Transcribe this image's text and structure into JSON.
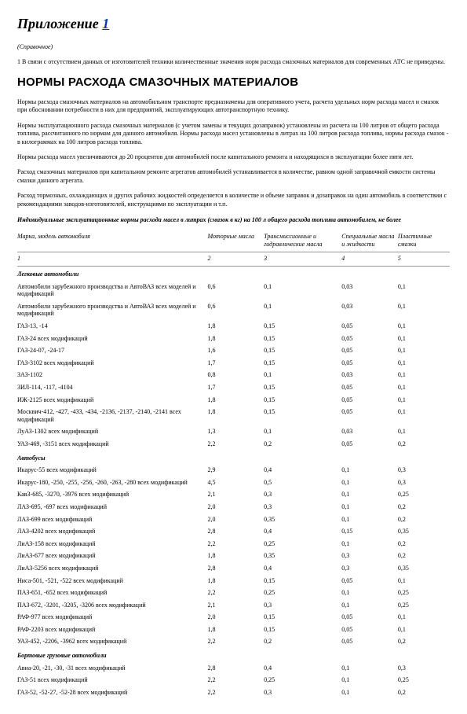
{
  "title_prefix": "Приложение ",
  "title_link": "1",
  "ref_note": "(Справочное)",
  "intro": "1 В связи с отсутствием данных от изготовителей техники количественные значения норм расхода смазочных материалов для современных АТС не приведены.",
  "heading": "НОРМЫ РАСХОДА СМАЗОЧНЫХ МАТЕРИАЛОВ",
  "paras": [
    "Нормы расхода смазочных материалов на автомобильном транспорте предназначены для оперативного учета, расчета удельных норм расхода масел и смазок при обосновании потребности в них для предприятий, эксплуатирующих автотранспортную технику.",
    "Нормы эксплуатационного расхода смазочных материалов (с учетом замены и текущих дозаправок) установлены из расчета на 100 литров от общего расхода топлива, рассчитанного по нормам для данного автомобиля. Нормы расхода масел установлены в литрах на 100 литров расхода топлива, нормы расхода смазок - в килограммах на 100 литров расхода топлива.",
    "Нормы расхода масел увеличиваются до 20 процентов для автомобилей после капитального ремонта и находящихся в эксплуатации более пяти лет.",
    "Расход смазочных материалов при капитальном ремонте агрегатов автомобилей устанавливается в количестве, равном одной заправочной емкости системы смазки данного агрегата.",
    "Расход тормозных, охлаждающих и других рабочих жидкостей определяется в количестве и объеме заправок и дозаправок на один автомобиль в соответствии с рекомендациями заводов-изготовителей, инструкциями по эксплуатации и т.п."
  ],
  "table_caption": "Индивидуальные эксплуатационные нормы расхода масел в литрах (смазок в кг) на 100 л общего расхода топлива автомобилем, не более",
  "columns": [
    "Марка, модель автомобиля",
    "Моторные масла",
    "Трансмиссионные и гидравлические масла",
    "Специальные масла и жидкости",
    "Пластичные смазки"
  ],
  "col_nums": [
    "1",
    "2",
    "3",
    "4",
    "5"
  ],
  "sections": [
    {
      "title": "Легковые автомобили",
      "rows": [
        [
          "Автомобили зарубежного производства и АвтоВАЗ всех моделей и модификаций",
          "0,6",
          "0,1",
          "0,03",
          "0,1"
        ],
        [
          "Автомобили зарубежного производства и АвтоВАЗ всех моделей и модификаций",
          "0,6",
          "0,1",
          "0,03",
          "0,1"
        ],
        [
          "ГАЗ-13, -14",
          "1,8",
          "0,15",
          "0,05",
          "0,1"
        ],
        [
          "ГАЗ-24 всех модификаций",
          "1,8",
          "0,15",
          "0,05",
          "0,1"
        ],
        [
          "ГАЗ-24-07, -24-17",
          "1,6",
          "0,15",
          "0,05",
          "0,1"
        ],
        [
          "ГАЗ-3102 всех модификаций",
          "1,7",
          "0,15",
          "0,05",
          "0,1"
        ],
        [
          "ЗАЗ-1102",
          "0,8",
          "0,1",
          "0,03",
          "0,1"
        ],
        [
          "ЗИЛ-114, -117, -4104",
          "1,7",
          "0,15",
          "0,05",
          "0,1"
        ],
        [
          "ИЖ-2125 всех модификаций",
          "1,8",
          "0,15",
          "0,05",
          "0,1"
        ],
        [
          "Москвич-412, -427, -433, -434, -2136, -2137, -2140, -2141 всех модификаций",
          "1,8",
          "0,15",
          "0,05",
          "0,1"
        ],
        [
          "ЛуАЗ-1302 всех модификаций",
          "1,3",
          "0,1",
          "0,03",
          "0,1"
        ],
        [
          "УАЗ-469, -3151 всех модификаций",
          "2,2",
          "0,2",
          "0,05",
          "0,2"
        ]
      ]
    },
    {
      "title": "Автобусы",
      "rows": [
        [
          "Икарус-55 всех модификаций",
          "2,9",
          "0,4",
          "0,1",
          "0,3"
        ],
        [
          "Икарус-180, -250, -255, -256, -260, -263, -280 всех модификаций",
          "4,5",
          "0,5",
          "0,1",
          "0,3"
        ],
        [
          "КавЗ-685, -3270, -3976 всех модификаций",
          "2,1",
          "0,3",
          "0,1",
          "0,25"
        ],
        [
          "ЛАЗ-695, -697 всех модификаций",
          "2,0",
          "0,3",
          "0,1",
          "0,2"
        ],
        [
          "ЛАЗ-699 всех модификаций",
          "2,0",
          "0,35",
          "0,1",
          "0,2"
        ],
        [
          "ЛАЗ-4202 всех модификаций",
          "2,8",
          "0,4",
          "0,15",
          "0,35"
        ],
        [
          "ЛиАЗ-158 всех модификаций",
          "2,2",
          "0,25",
          "0,1",
          "0,2"
        ],
        [
          "ЛиАЗ-677 всех модификаций",
          "1,8",
          "0,35",
          "0,3",
          "0,2"
        ],
        [
          "ЛиАЗ-5256 всех модификаций",
          "2,8",
          "0,4",
          "0,3",
          "0,35"
        ],
        [
          "Ниса-501, -521, -522 всех модификаций",
          "1,8",
          "0,15",
          "0,05",
          "0,1"
        ],
        [
          "ПАЗ-651, -652 всех модификаций",
          "2,2",
          "0,25",
          "0,1",
          "0,25"
        ],
        [
          "ПАЗ-672, -3201, -3205, -3206 всех модификаций",
          "2,1",
          "0,3",
          "0,1",
          "0,25"
        ],
        [
          "РАФ-977 всех модификаций",
          "2,0",
          "0,15",
          "0,05",
          "0,1"
        ],
        [
          "РАФ-2203 всех модификаций",
          "1,8",
          "0,15",
          "0,05",
          "0,1"
        ],
        [
          "УАЗ-452, -2206, -3962 всех модификаций",
          "2,2",
          "0,2",
          "0,05",
          "0,2"
        ]
      ]
    },
    {
      "title": "Бортовые грузовые автомобили",
      "rows": [
        [
          "Авиа-20, -21, -30, -31 всех модификаций",
          "2,8",
          "0,4",
          "0,1",
          "0,3"
        ],
        [
          "ГАЗ-51 всех модификаций",
          "2,2",
          "0,25",
          "0,1",
          "0,25"
        ],
        [
          "ГАЗ-52, -52-27, -52-28 всех модификаций",
          "2,2",
          "0,3",
          "0,1",
          "0,2"
        ]
      ]
    }
  ]
}
